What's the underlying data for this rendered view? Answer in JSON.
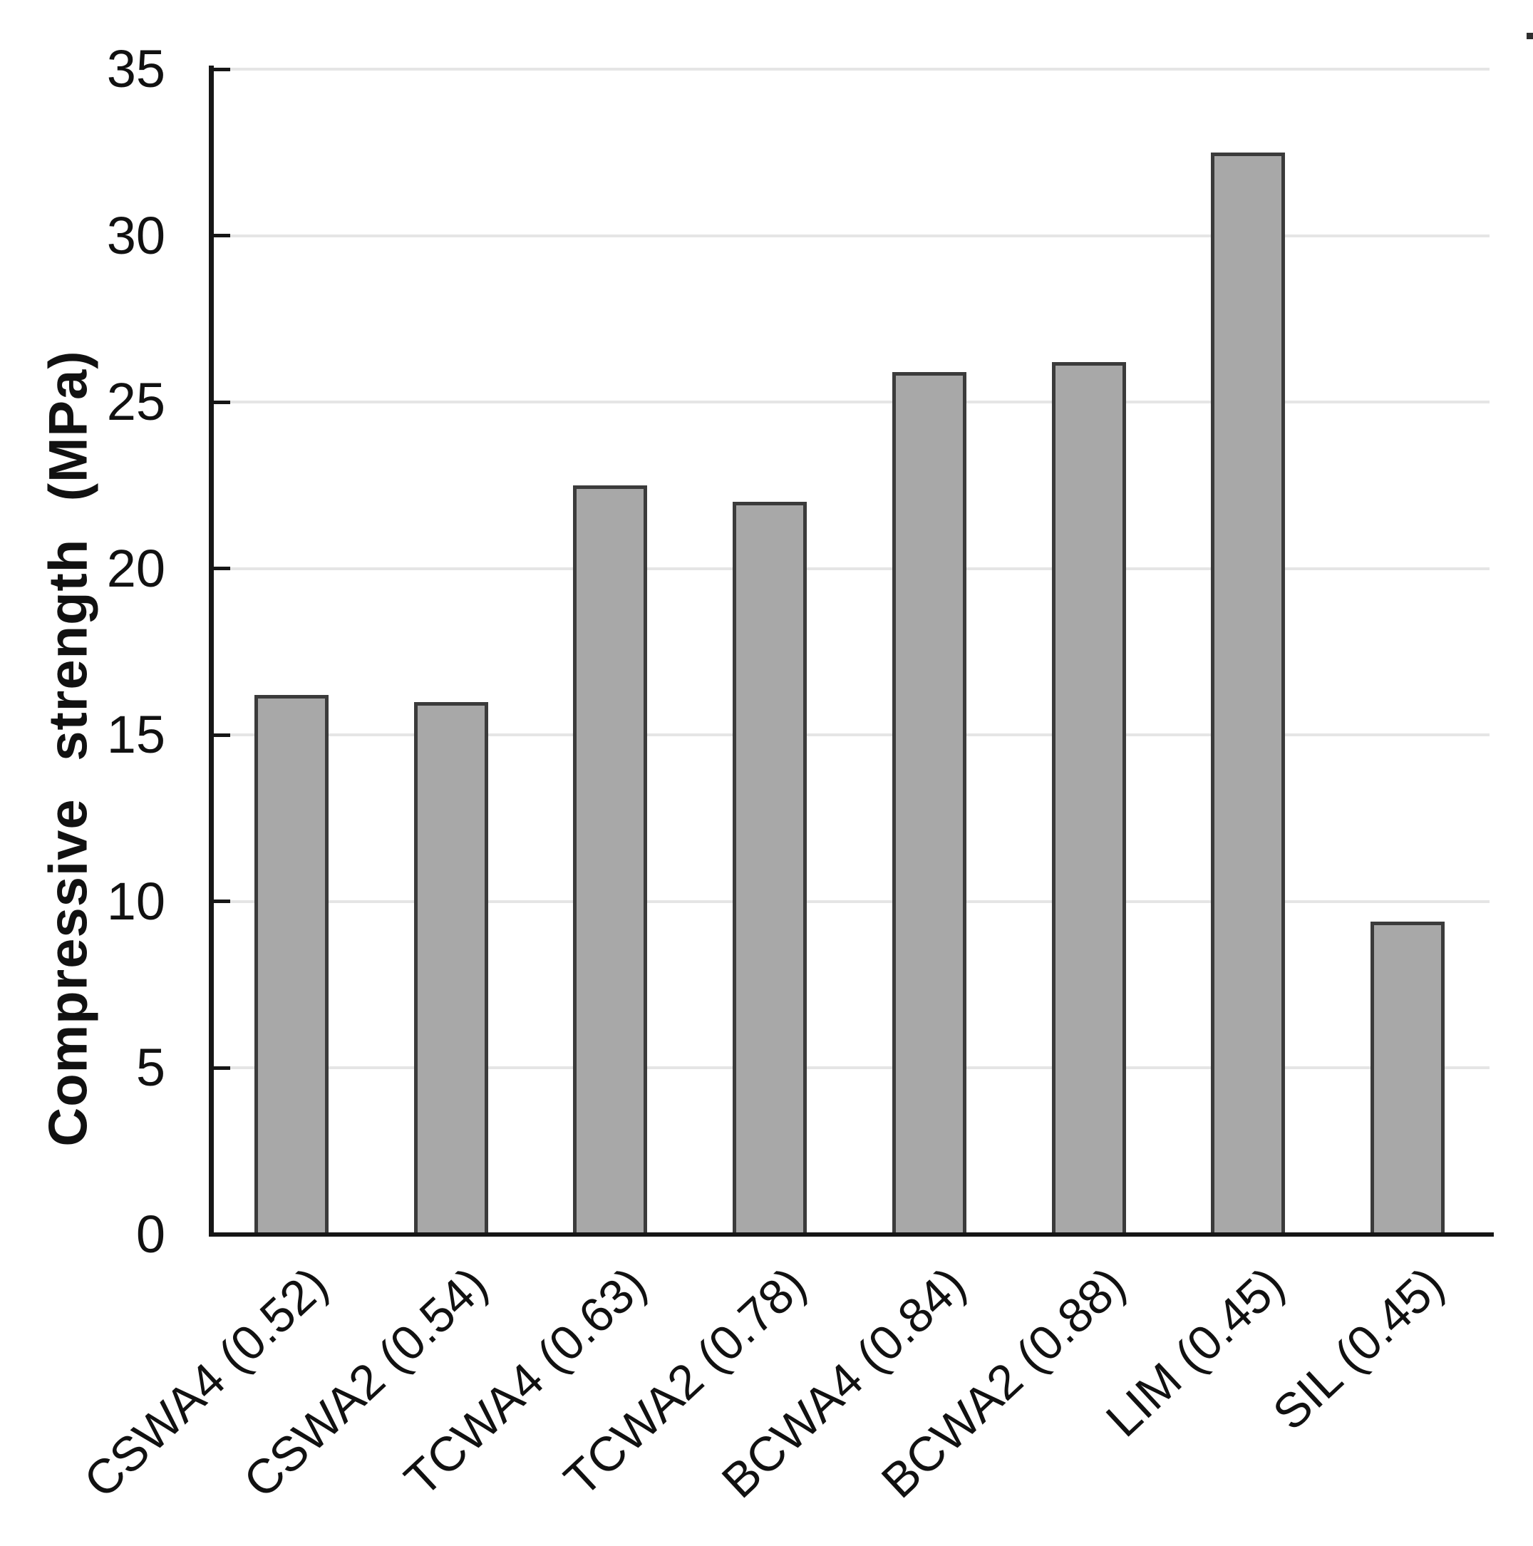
{
  "chart_data": {
    "type": "bar",
    "title": "",
    "xlabel": "",
    "ylabel": "Compressive strength (MPa)",
    "categories": [
      "CSWA4 (0.52)",
      "CSWA2 (0.54)",
      "TCWA4 (0.63)",
      "TCWA2 (0.78)",
      "BCWA4 (0.84)",
      "BCWA2 (0.88)",
      "LIM (0.45)",
      "SIL (0.45)"
    ],
    "values": [
      16.2,
      16.0,
      22.5,
      22.0,
      25.9,
      26.2,
      32.5,
      9.4
    ],
    "ylim": [
      0,
      35
    ],
    "yticks": [
      0,
      5,
      10,
      15,
      20,
      25,
      30,
      35
    ],
    "grid": "horizontal",
    "legend": "none",
    "bar_color": "#a8a8a8",
    "bar_border_color": "#3b3b3b",
    "gridline_color": "#e5e5e5",
    "axis_color": "#161616",
    "text_color": "#111111",
    "background": "#ffffff"
  }
}
